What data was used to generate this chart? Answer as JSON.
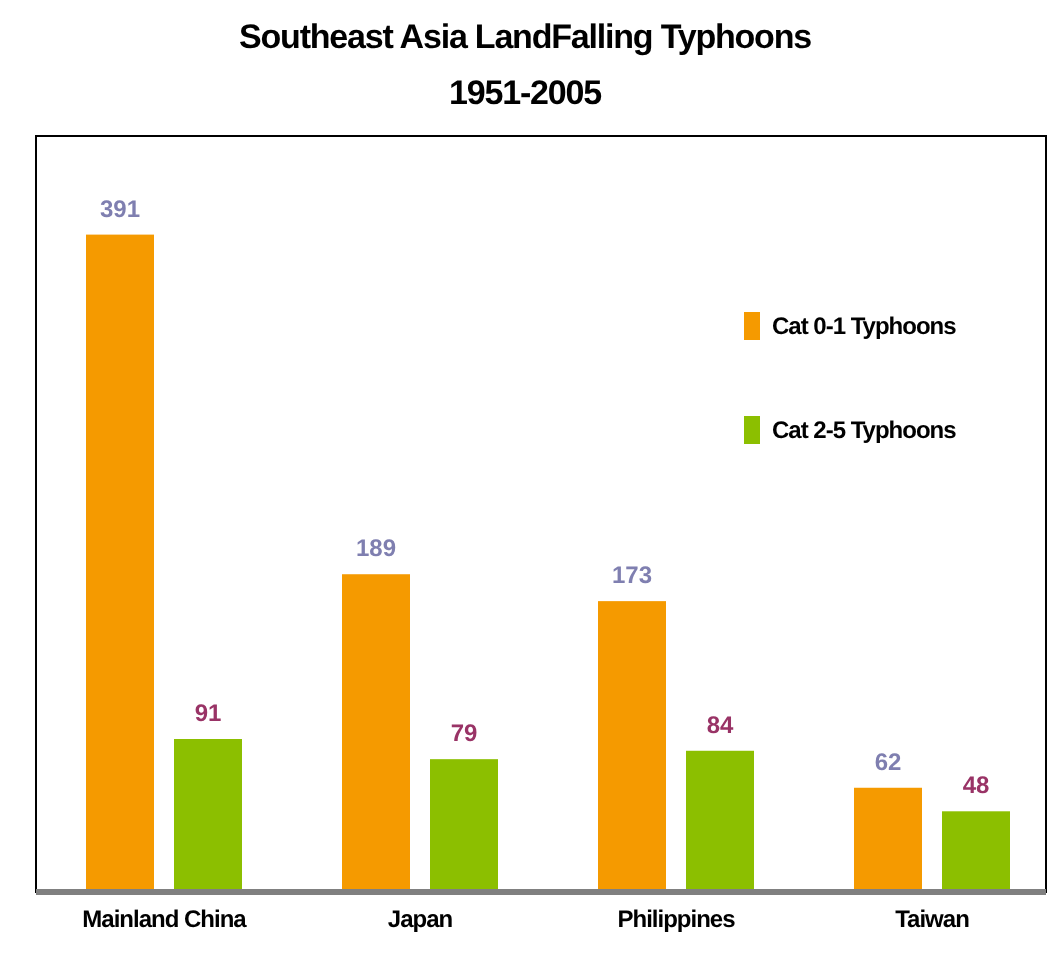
{
  "chart_data": {
    "type": "bar",
    "title": "Southeast Asia LandFalling Typhoons",
    "subtitle": "1951-2005",
    "categories": [
      "Mainland China",
      "Japan",
      "Philippines",
      "Taiwan"
    ],
    "series": [
      {
        "name": "Cat 0-1 Typhoons",
        "color": "#f59a00",
        "values": [
          391,
          189,
          173,
          62
        ]
      },
      {
        "name": "Cat 2-5 Typhoons",
        "color": "#8cbf00",
        "values": [
          91,
          79,
          84,
          48
        ]
      }
    ],
    "data_labels": true,
    "legend": "top right"
  }
}
